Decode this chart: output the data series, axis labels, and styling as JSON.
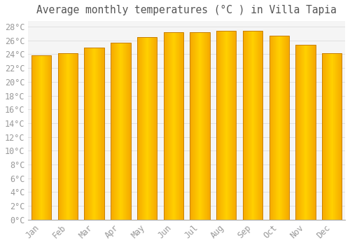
{
  "title": "Average monthly temperatures (°C ) in Villa Tapia",
  "months": [
    "Jan",
    "Feb",
    "Mar",
    "Apr",
    "May",
    "Jun",
    "Jul",
    "Aug",
    "Sep",
    "Oct",
    "Nov",
    "Dec"
  ],
  "temperatures": [
    23.8,
    24.1,
    25.0,
    25.7,
    26.5,
    27.2,
    27.2,
    27.4,
    27.4,
    26.7,
    25.4,
    24.1
  ],
  "bar_color_center": "#FFD050",
  "bar_color_edge": "#F5A800",
  "bar_outline_color": "#C88000",
  "background_color": "#ffffff",
  "plot_bg_color": "#f5f5f5",
  "grid_color": "#dddddd",
  "ytick_step": 2,
  "ymin": 0,
  "ymax": 28,
  "title_fontsize": 10.5,
  "tick_fontsize": 8.5,
  "font_family": "monospace",
  "tick_color": "#999999",
  "title_color": "#555555",
  "bar_width": 0.75
}
